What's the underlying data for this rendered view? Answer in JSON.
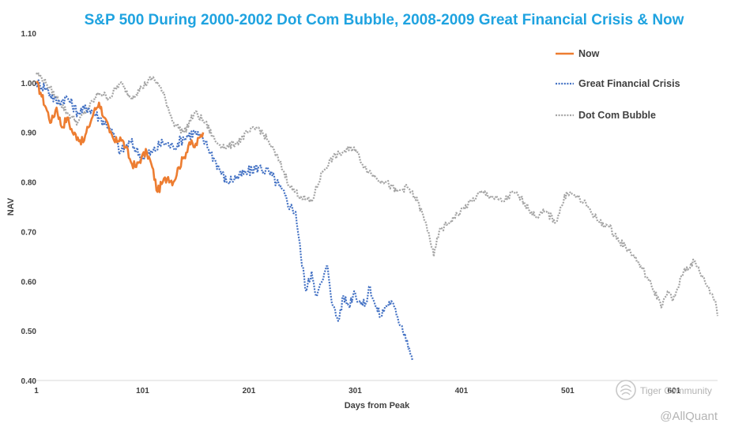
{
  "chart_data": {
    "type": "line",
    "title": "S&P 500 During 2000-2002 Dot Com Bubble, 2008-2009 Great Financial Crisis & Now",
    "xlabel": "Days from Peak",
    "ylabel": "NAV",
    "xlim": [
      1,
      642
    ],
    "ylim": [
      0.4,
      1.1
    ],
    "x_ticks": [
      1,
      101,
      201,
      301,
      401,
      501,
      601
    ],
    "y_ticks": [
      0.4,
      0.5,
      0.6,
      0.7,
      0.8,
      0.9,
      1.0,
      1.1
    ],
    "y_tick_labels": [
      "0.40",
      "0.50",
      "0.60",
      "0.70",
      "0.80",
      "0.90",
      "1.00",
      "1.10"
    ],
    "grid": false,
    "legend_position": "top-right",
    "series": [
      {
        "name": "Now",
        "color": "#ED7D31",
        "style": "solid",
        "x": [
          1,
          5,
          10,
          15,
          20,
          25,
          30,
          35,
          40,
          45,
          50,
          55,
          60,
          65,
          70,
          75,
          80,
          85,
          90,
          95,
          100,
          105,
          110,
          115,
          120,
          125,
          130,
          135,
          140,
          145,
          150,
          155,
          158
        ],
        "y": [
          1.0,
          0.98,
          0.95,
          0.92,
          0.95,
          0.91,
          0.93,
          0.9,
          0.89,
          0.88,
          0.91,
          0.94,
          0.96,
          0.93,
          0.9,
          0.88,
          0.89,
          0.87,
          0.84,
          0.83,
          0.85,
          0.86,
          0.83,
          0.78,
          0.8,
          0.81,
          0.8,
          0.83,
          0.85,
          0.88,
          0.87,
          0.89,
          0.9
        ]
      },
      {
        "name": "Great Financial Crisis",
        "color": "#4472C4",
        "style": "dotted",
        "x": [
          1,
          10,
          20,
          30,
          40,
          50,
          60,
          70,
          80,
          90,
          100,
          110,
          120,
          130,
          140,
          150,
          160,
          170,
          180,
          190,
          200,
          210,
          220,
          230,
          240,
          245,
          250,
          255,
          260,
          265,
          270,
          275,
          280,
          285,
          290,
          295,
          300,
          305,
          310,
          315,
          320,
          325,
          330,
          335,
          340,
          345,
          350,
          355
        ],
        "y": [
          1.0,
          0.99,
          0.96,
          0.97,
          0.94,
          0.95,
          0.93,
          0.91,
          0.86,
          0.88,
          0.85,
          0.86,
          0.88,
          0.87,
          0.89,
          0.9,
          0.88,
          0.84,
          0.8,
          0.81,
          0.82,
          0.83,
          0.82,
          0.79,
          0.75,
          0.74,
          0.65,
          0.58,
          0.62,
          0.57,
          0.6,
          0.63,
          0.55,
          0.52,
          0.57,
          0.55,
          0.58,
          0.56,
          0.55,
          0.59,
          0.55,
          0.53,
          0.55,
          0.56,
          0.53,
          0.51,
          0.48,
          0.44
        ]
      },
      {
        "name": "Dot Com Bubble",
        "color": "#A5A5A5",
        "style": "dotted",
        "x": [
          1,
          10,
          20,
          30,
          40,
          50,
          60,
          70,
          80,
          90,
          100,
          110,
          115,
          120,
          130,
          140,
          150,
          160,
          170,
          180,
          190,
          200,
          210,
          220,
          230,
          240,
          250,
          260,
          270,
          280,
          290,
          300,
          310,
          320,
          330,
          340,
          350,
          360,
          370,
          375,
          380,
          390,
          400,
          410,
          420,
          430,
          440,
          450,
          460,
          470,
          480,
          490,
          500,
          510,
          520,
          530,
          540,
          550,
          560,
          570,
          580,
          590,
          595,
          600,
          610,
          620,
          630,
          640,
          642
        ],
        "y": [
          1.02,
          1.0,
          0.97,
          0.94,
          0.92,
          0.95,
          0.98,
          0.97,
          1.0,
          0.97,
          0.99,
          1.01,
          1.0,
          0.98,
          0.92,
          0.9,
          0.94,
          0.92,
          0.88,
          0.87,
          0.88,
          0.9,
          0.91,
          0.88,
          0.84,
          0.79,
          0.77,
          0.76,
          0.82,
          0.85,
          0.86,
          0.87,
          0.83,
          0.81,
          0.8,
          0.78,
          0.79,
          0.76,
          0.7,
          0.65,
          0.7,
          0.72,
          0.74,
          0.76,
          0.78,
          0.77,
          0.76,
          0.78,
          0.76,
          0.73,
          0.74,
          0.72,
          0.78,
          0.77,
          0.75,
          0.72,
          0.71,
          0.68,
          0.66,
          0.63,
          0.59,
          0.55,
          0.58,
          0.56,
          0.62,
          0.64,
          0.6,
          0.56,
          0.53
        ]
      }
    ]
  },
  "watermark": {
    "brand": "Tiger Community",
    "handle": "@AllQuant"
  }
}
